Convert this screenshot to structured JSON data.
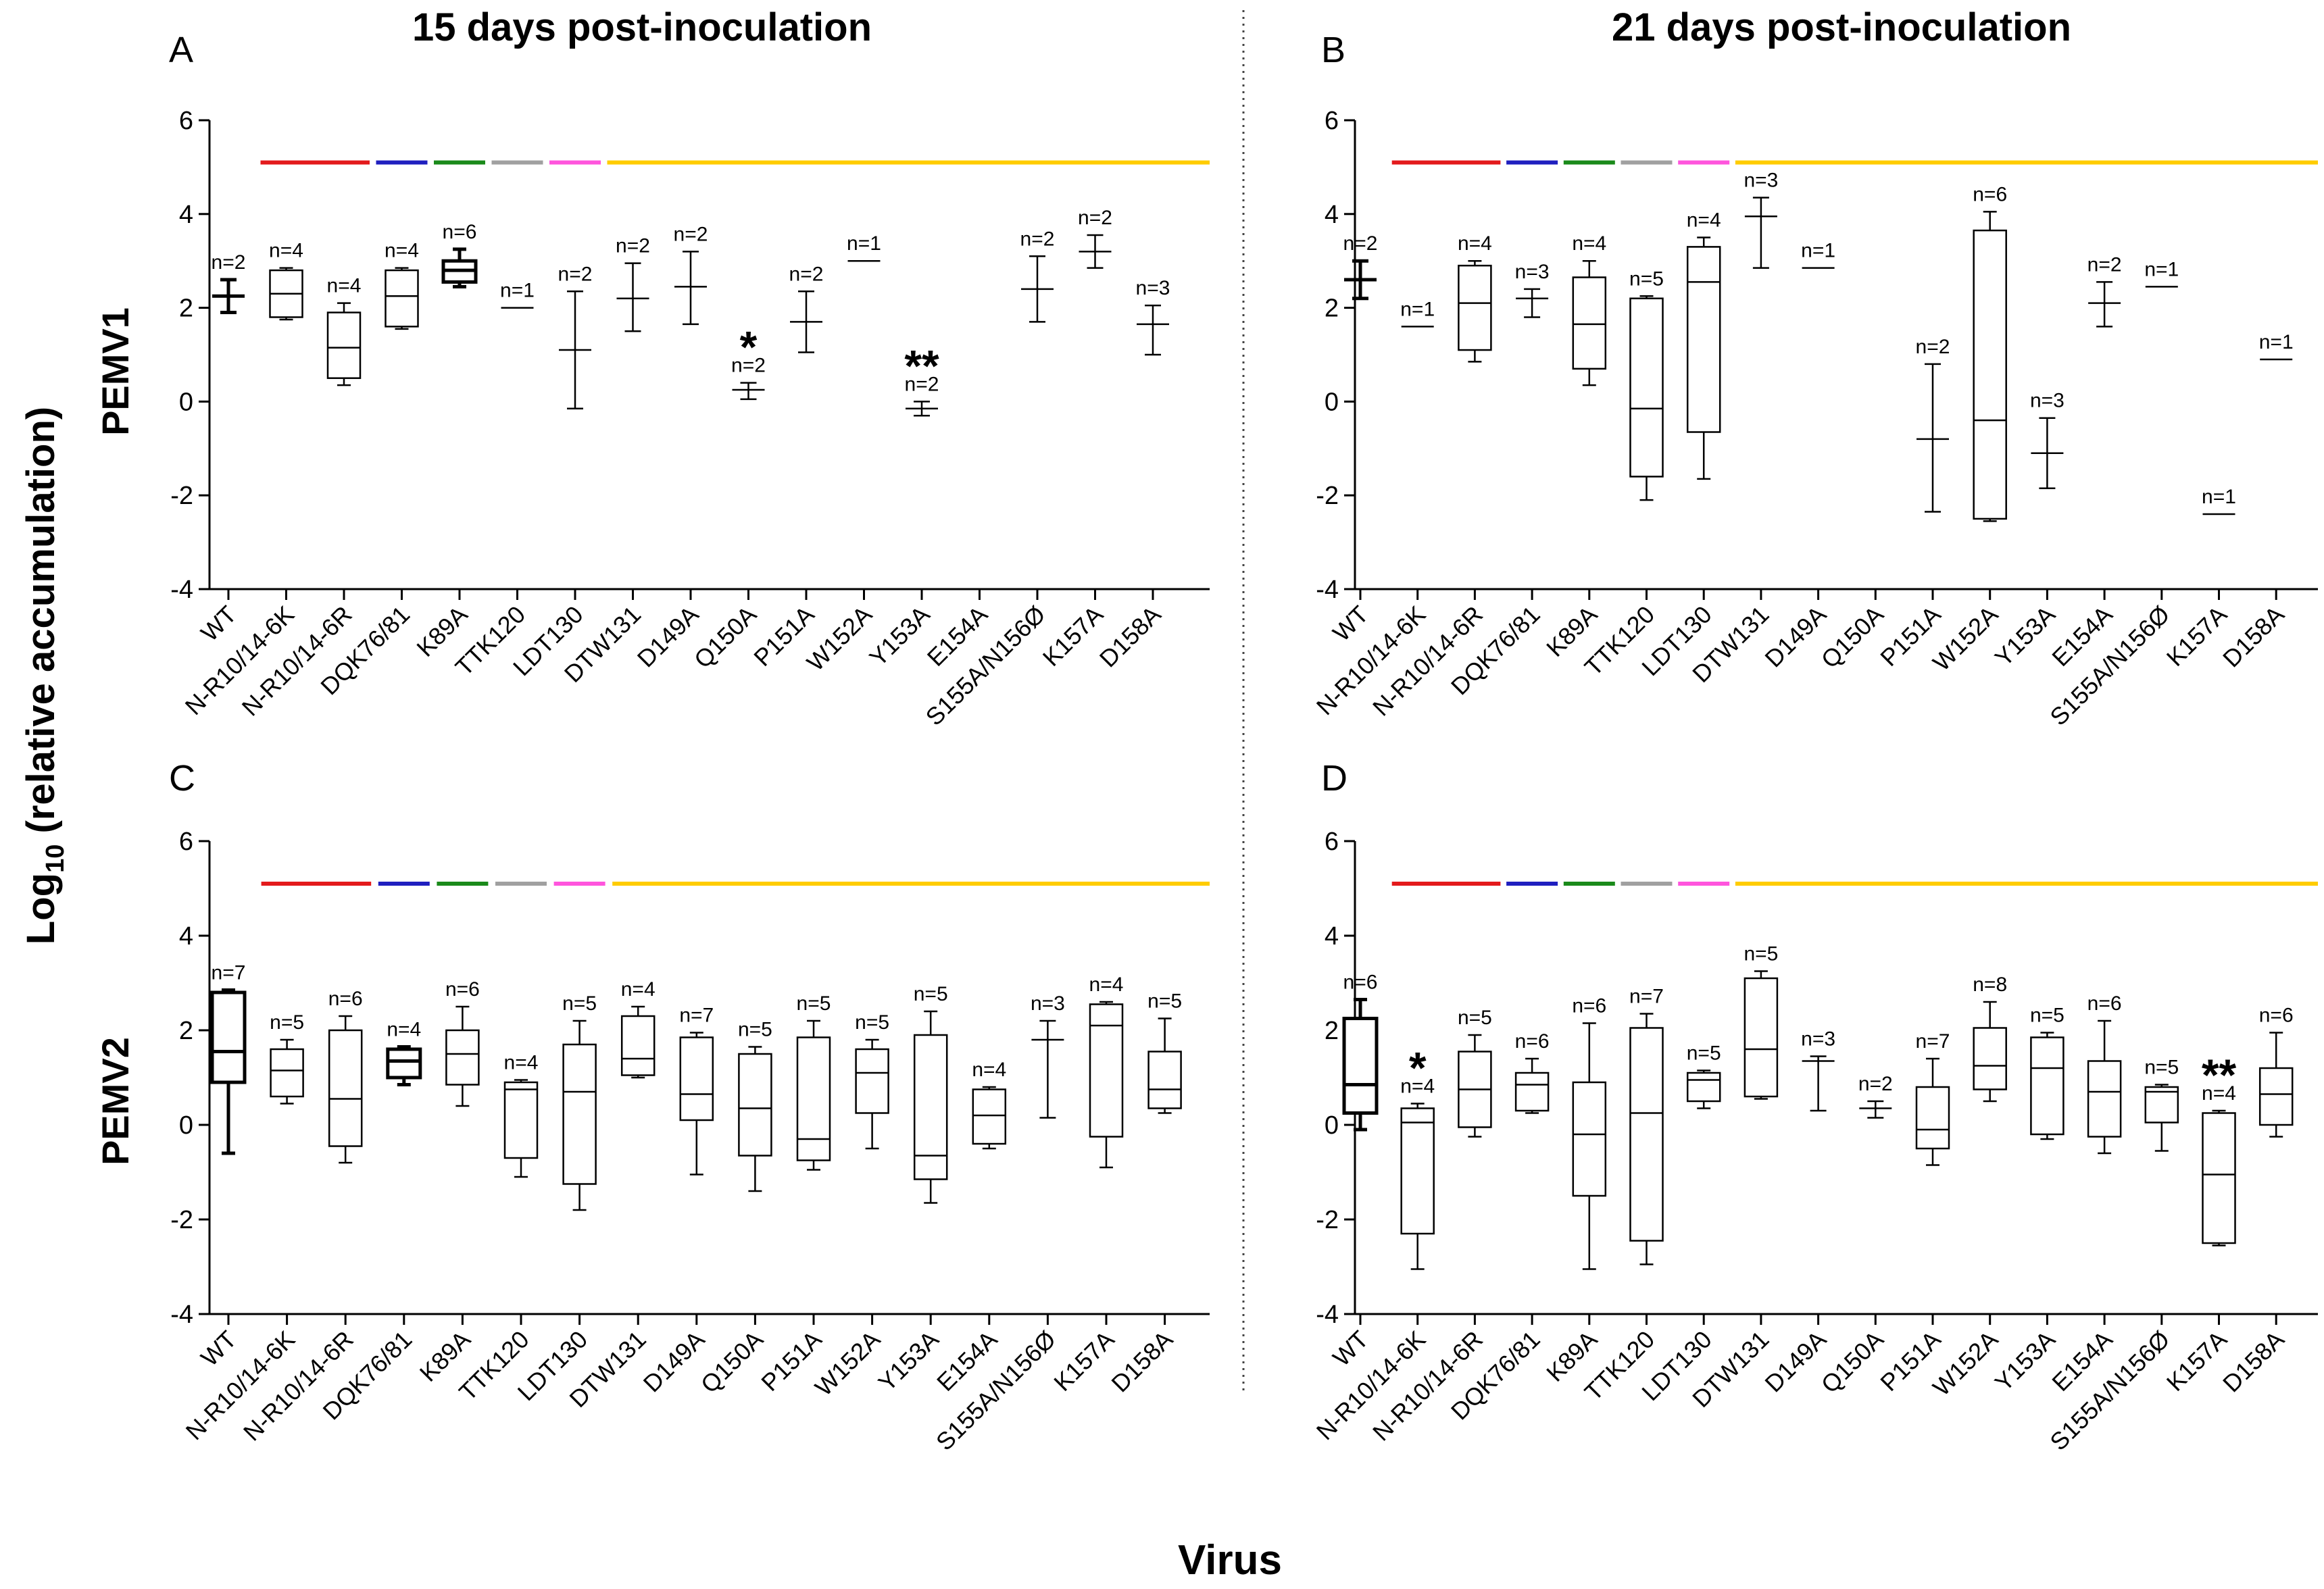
{
  "figure": {
    "y_label_main": "Log",
    "y_label_sub": "10",
    "y_label_rest": " (relative  accumulation)",
    "x_label": "Virus",
    "col_titles": [
      "15 days post-inoculation",
      "21 days post-inoculation"
    ],
    "row_titles": [
      "PEMV1",
      "PEMV2"
    ]
  },
  "group_bars": [
    {
      "color": "#e31a1c",
      "from": "N-R10/14-6K",
      "to": "N-R10/14-6R"
    },
    {
      "color": "#1f1fbf",
      "from": "DQK76/81",
      "to": "DQK76/81"
    },
    {
      "color": "#1a8a1a",
      "from": "K89A",
      "to": "K89A"
    },
    {
      "color": "#a0a0a0",
      "from": "TTK120",
      "to": "TTK120"
    },
    {
      "color": "#ff55dd",
      "from": "LDT130",
      "to": "LDT130"
    },
    {
      "color": "#ffcc00",
      "from": "DTW131",
      "to": "D158A"
    }
  ],
  "chart_data": [
    {
      "panel": "A",
      "type": "box",
      "title": "15 days post-inoculation",
      "row_label": "PEMV1",
      "xlabel": "Virus",
      "ylabel": "Log10 (relative accumulation)",
      "ylim": [
        -4,
        6
      ],
      "yticks": [
        -4,
        -2,
        0,
        2,
        4,
        6
      ],
      "categories": [
        "WT",
        "N-R10/14-6K",
        "N-R10/14-6R",
        "DQK76/81",
        "K89A",
        "TTK120",
        "LDT130",
        "DTW131",
        "D149A",
        "Q150A",
        "P151A",
        "W152A",
        "Y153A",
        "E154A",
        "S155A/N156Ø",
        "K157A",
        "D158A"
      ],
      "boxes": [
        {
          "kind": "err",
          "mean": 2.25,
          "lo": 1.9,
          "hi": 2.6,
          "n": "n=2",
          "bold": true
        },
        {
          "kind": "box",
          "min": 1.75,
          "q1": 1.8,
          "med": 2.3,
          "q3": 2.8,
          "max": 2.85,
          "n": "n=4"
        },
        {
          "kind": "box",
          "min": 0.35,
          "q1": 0.5,
          "med": 1.15,
          "q3": 1.9,
          "max": 2.1,
          "n": "n=4"
        },
        {
          "kind": "box",
          "min": 1.55,
          "q1": 1.6,
          "med": 2.25,
          "q3": 2.8,
          "max": 2.85,
          "n": "n=4"
        },
        {
          "kind": "box",
          "min": 2.45,
          "q1": 2.55,
          "med": 2.8,
          "q3": 3.0,
          "max": 3.25,
          "n": "n=6",
          "bold": true
        },
        {
          "kind": "line",
          "mean": 2.0,
          "n": "n=1"
        },
        {
          "kind": "err",
          "mean": 1.1,
          "lo": -0.15,
          "hi": 2.35,
          "n": "n=2"
        },
        {
          "kind": "err",
          "mean": 2.2,
          "lo": 1.5,
          "hi": 2.95,
          "n": "n=2"
        },
        {
          "kind": "err",
          "mean": 2.45,
          "lo": 1.65,
          "hi": 3.2,
          "n": "n=2"
        },
        {
          "kind": "err",
          "mean": 0.25,
          "lo": 0.05,
          "hi": 0.4,
          "n": "n=2",
          "star": "*"
        },
        {
          "kind": "err",
          "mean": 1.7,
          "lo": 1.05,
          "hi": 2.35,
          "n": "n=2"
        },
        {
          "kind": "line",
          "mean": 3.0,
          "n": "n=1"
        },
        {
          "kind": "err",
          "mean": -0.15,
          "lo": -0.3,
          "hi": 0.0,
          "n": "n=2",
          "star": "**"
        },
        {
          "kind": "none"
        },
        {
          "kind": "err",
          "mean": 2.4,
          "lo": 1.7,
          "hi": 3.1,
          "n": "n=2"
        },
        {
          "kind": "err",
          "mean": 3.2,
          "lo": 2.85,
          "hi": 3.55,
          "n": "n=2"
        },
        {
          "kind": "err",
          "mean": 1.65,
          "lo": 1.0,
          "hi": 2.05,
          "n": "n=3"
        }
      ]
    },
    {
      "panel": "B",
      "type": "box",
      "title": "21 days post-inoculation",
      "row_label": "PEMV1",
      "xlabel": "Virus",
      "ylabel": "Log10 (relative accumulation)",
      "ylim": [
        -4,
        6
      ],
      "yticks": [
        -4,
        -2,
        0,
        2,
        4,
        6
      ],
      "categories": [
        "WT",
        "N-R10/14-6K",
        "N-R10/14-6R",
        "DQK76/81",
        "K89A",
        "TTK120",
        "LDT130",
        "DTW131",
        "D149A",
        "Q150A",
        "P151A",
        "W152A",
        "Y153A",
        "E154A",
        "S155A/N156Ø",
        "K157A",
        "D158A"
      ],
      "boxes": [
        {
          "kind": "err",
          "mean": 2.6,
          "lo": 2.2,
          "hi": 3.0,
          "n": "n=2",
          "bold": true
        },
        {
          "kind": "line",
          "mean": 1.6,
          "n": "n=1"
        },
        {
          "kind": "box",
          "min": 0.85,
          "q1": 1.1,
          "med": 2.1,
          "q3": 2.9,
          "max": 3.0,
          "n": "n=4"
        },
        {
          "kind": "err",
          "mean": 2.2,
          "lo": 1.8,
          "hi": 2.4,
          "n": "n=3"
        },
        {
          "kind": "box",
          "min": 0.35,
          "q1": 0.7,
          "med": 1.65,
          "q3": 2.65,
          "max": 3.0,
          "n": "n=4"
        },
        {
          "kind": "box",
          "min": -2.1,
          "q1": -1.6,
          "med": -0.15,
          "q3": 2.2,
          "max": 2.25,
          "n": "n=5"
        },
        {
          "kind": "box",
          "min": -1.65,
          "q1": -0.65,
          "med": 2.55,
          "q3": 3.3,
          "max": 3.5,
          "n": "n=4"
        },
        {
          "kind": "err",
          "mean": 3.95,
          "lo": 2.85,
          "hi": 4.35,
          "n": "n=3"
        },
        {
          "kind": "line",
          "mean": 2.85,
          "n": "n=1"
        },
        {
          "kind": "none"
        },
        {
          "kind": "err",
          "mean": -0.8,
          "lo": -2.35,
          "hi": 0.8,
          "n": "n=2"
        },
        {
          "kind": "box",
          "min": -2.55,
          "q1": -2.5,
          "med": -0.4,
          "q3": 3.65,
          "max": 4.05,
          "n": "n=6"
        },
        {
          "kind": "err",
          "mean": -1.1,
          "lo": -1.85,
          "hi": -0.35,
          "n": "n=3"
        },
        {
          "kind": "err",
          "mean": 2.1,
          "lo": 1.6,
          "hi": 2.55,
          "n": "n=2"
        },
        {
          "kind": "line",
          "mean": 2.45,
          "n": "n=1"
        },
        {
          "kind": "line",
          "mean": -2.4,
          "n": "n=1"
        },
        {
          "kind": "line",
          "mean": 0.9,
          "n": "n=1"
        }
      ]
    },
    {
      "panel": "C",
      "type": "box",
      "title": "15 days post-inoculation",
      "row_label": "PEMV2",
      "xlabel": "Virus",
      "ylabel": "Log10 (relative accumulation)",
      "ylim": [
        -4,
        6
      ],
      "yticks": [
        -4,
        -2,
        0,
        2,
        4,
        6
      ],
      "categories": [
        "WT",
        "N-R10/14-6K",
        "N-R10/14-6R",
        "DQK76/81",
        "K89A",
        "TTK120",
        "LDT130",
        "DTW131",
        "D149A",
        "Q150A",
        "P151A",
        "W152A",
        "Y153A",
        "E154A",
        "S155A/N156Ø",
        "K157A",
        "D158A"
      ],
      "boxes": [
        {
          "kind": "box",
          "min": -0.6,
          "q1": 0.9,
          "med": 1.55,
          "q3": 2.8,
          "max": 2.85,
          "n": "n=7",
          "bold": true
        },
        {
          "kind": "box",
          "min": 0.45,
          "q1": 0.6,
          "med": 1.15,
          "q3": 1.6,
          "max": 1.8,
          "n": "n=5"
        },
        {
          "kind": "box",
          "min": -0.8,
          "q1": -0.45,
          "med": 0.55,
          "q3": 2.0,
          "max": 2.3,
          "n": "n=6"
        },
        {
          "kind": "box",
          "min": 0.85,
          "q1": 1.0,
          "med": 1.35,
          "q3": 1.6,
          "max": 1.65,
          "n": "n=4",
          "bold": true
        },
        {
          "kind": "box",
          "min": 0.4,
          "q1": 0.85,
          "med": 1.5,
          "q3": 2.0,
          "max": 2.5,
          "n": "n=6"
        },
        {
          "kind": "box",
          "min": -1.1,
          "q1": -0.7,
          "med": 0.75,
          "q3": 0.9,
          "max": 0.95,
          "n": "n=4"
        },
        {
          "kind": "box",
          "min": -1.8,
          "q1": -1.25,
          "med": 0.7,
          "q3": 1.7,
          "max": 2.2,
          "n": "n=5"
        },
        {
          "kind": "box",
          "min": 1.0,
          "q1": 1.05,
          "med": 1.4,
          "q3": 2.3,
          "max": 2.5,
          "n": "n=4"
        },
        {
          "kind": "box",
          "min": -1.05,
          "q1": 0.1,
          "med": 0.65,
          "q3": 1.85,
          "max": 1.95,
          "n": "n=7"
        },
        {
          "kind": "box",
          "min": -1.4,
          "q1": -0.65,
          "med": 0.35,
          "q3": 1.5,
          "max": 1.65,
          "n": "n=5"
        },
        {
          "kind": "box",
          "min": -0.95,
          "q1": -0.75,
          "med": -0.3,
          "q3": 1.85,
          "max": 2.2,
          "n": "n=5"
        },
        {
          "kind": "box",
          "min": -0.5,
          "q1": 0.25,
          "med": 1.1,
          "q3": 1.6,
          "max": 1.8,
          "n": "n=5"
        },
        {
          "kind": "box",
          "min": -1.65,
          "q1": -1.15,
          "med": -0.65,
          "q3": 1.9,
          "max": 2.4,
          "n": "n=5"
        },
        {
          "kind": "box",
          "min": -0.5,
          "q1": -0.4,
          "med": 0.2,
          "q3": 0.75,
          "max": 0.8,
          "n": "n=4"
        },
        {
          "kind": "err",
          "mean": 1.8,
          "lo": 0.15,
          "hi": 2.2,
          "n": "n=3"
        },
        {
          "kind": "box",
          "min": -0.9,
          "q1": -0.25,
          "med": 2.1,
          "q3": 2.55,
          "max": 2.6,
          "n": "n=4"
        },
        {
          "kind": "box",
          "min": 0.25,
          "q1": 0.35,
          "med": 0.75,
          "q3": 1.55,
          "max": 2.25,
          "n": "n=5"
        }
      ]
    },
    {
      "panel": "D",
      "type": "box",
      "title": "21 days post-inoculation",
      "row_label": "PEMV2",
      "xlabel": "Virus",
      "ylabel": "Log10 (relative accumulation)",
      "ylim": [
        -4,
        6
      ],
      "yticks": [
        -4,
        -2,
        0,
        2,
        4,
        6
      ],
      "categories": [
        "WT",
        "N-R10/14-6K",
        "N-R10/14-6R",
        "DQK76/81",
        "K89A",
        "TTK120",
        "LDT130",
        "DTW131",
        "D149A",
        "Q150A",
        "P151A",
        "W152A",
        "Y153A",
        "E154A",
        "S155A/N156Ø",
        "K157A",
        "D158A"
      ],
      "boxes": [
        {
          "kind": "box",
          "min": -0.1,
          "q1": 0.25,
          "med": 0.85,
          "q3": 2.25,
          "max": 2.65,
          "n": "n=6",
          "bold": true
        },
        {
          "kind": "box",
          "min": -3.05,
          "q1": -2.3,
          "med": 0.05,
          "q3": 0.35,
          "max": 0.45,
          "n": "n=4",
          "star": "*"
        },
        {
          "kind": "box",
          "min": -0.25,
          "q1": -0.05,
          "med": 0.75,
          "q3": 1.55,
          "max": 1.9,
          "n": "n=5"
        },
        {
          "kind": "box",
          "min": 0.25,
          "q1": 0.3,
          "med": 0.85,
          "q3": 1.1,
          "max": 1.4,
          "n": "n=6"
        },
        {
          "kind": "box",
          "min": -3.05,
          "q1": -1.5,
          "med": -0.2,
          "q3": 0.9,
          "max": 2.15,
          "n": "n=6"
        },
        {
          "kind": "box",
          "min": -2.95,
          "q1": -2.45,
          "med": 0.25,
          "q3": 2.05,
          "max": 2.35,
          "n": "n=7"
        },
        {
          "kind": "box",
          "min": 0.35,
          "q1": 0.5,
          "med": 0.95,
          "q3": 1.1,
          "max": 1.15,
          "n": "n=5"
        },
        {
          "kind": "box",
          "min": 0.55,
          "q1": 0.6,
          "med": 1.6,
          "q3": 3.1,
          "max": 3.25,
          "n": "n=5"
        },
        {
          "kind": "err",
          "mean": 1.35,
          "lo": 0.3,
          "hi": 1.45,
          "n": "n=3"
        },
        {
          "kind": "err",
          "mean": 0.35,
          "lo": 0.15,
          "hi": 0.5,
          "n": "n=2"
        },
        {
          "kind": "box",
          "min": -0.85,
          "q1": -0.5,
          "med": -0.1,
          "q3": 0.8,
          "max": 1.4,
          "n": "n=7"
        },
        {
          "kind": "box",
          "min": 0.5,
          "q1": 0.75,
          "med": 1.25,
          "q3": 2.05,
          "max": 2.6,
          "n": "n=8"
        },
        {
          "kind": "box",
          "min": -0.3,
          "q1": -0.2,
          "med": 1.2,
          "q3": 1.85,
          "max": 1.95,
          "n": "n=5"
        },
        {
          "kind": "box",
          "min": -0.6,
          "q1": -0.25,
          "med": 0.7,
          "q3": 1.35,
          "max": 2.2,
          "n": "n=6"
        },
        {
          "kind": "box",
          "min": -0.55,
          "q1": 0.05,
          "med": 0.7,
          "q3": 0.8,
          "max": 0.85,
          "n": "n=5"
        },
        {
          "kind": "box",
          "min": -2.55,
          "q1": -2.5,
          "med": -1.05,
          "q3": 0.25,
          "max": 0.3,
          "n": "n=4",
          "star": "**"
        },
        {
          "kind": "box",
          "min": -0.25,
          "q1": 0.0,
          "med": 0.65,
          "q3": 1.2,
          "max": 1.95,
          "n": "n=6"
        }
      ]
    }
  ]
}
